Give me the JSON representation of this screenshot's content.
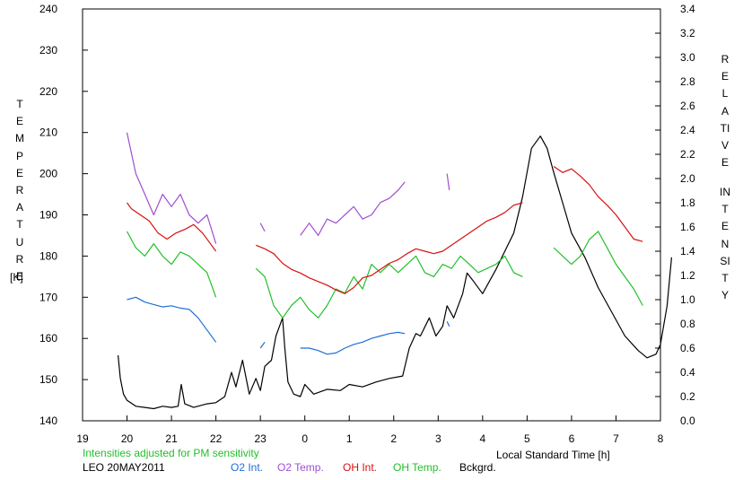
{
  "chart_data": {
    "type": "line",
    "title": "",
    "left_axis_label": "TEMPERATURE",
    "left_axis_unit": "[K]",
    "right_axis_label_1": "RELATIVE",
    "right_axis_label_2": "INTENSITY",
    "xlabel": "Local Standard Time [h]",
    "note": "Intensities adjusted for PM sensitivity",
    "station_label": "LEO 20MAY2011",
    "x_ticks": [
      19,
      20,
      21,
      22,
      23,
      0,
      1,
      2,
      3,
      4,
      5,
      6,
      7,
      8
    ],
    "xlim": [
      19,
      32
    ],
    "ylim_left": [
      140,
      240
    ],
    "y_ticks_left": [
      140,
      150,
      160,
      170,
      180,
      190,
      200,
      210,
      220,
      230,
      240
    ],
    "ylim_right": [
      0.0,
      3.4
    ],
    "y_ticks_right": [
      "0.0",
      "0.2",
      "0.4",
      "0.6",
      "0.8",
      "1.0",
      "1.2",
      "1.4",
      "1.6",
      "1.8",
      "2.0",
      "2.2",
      "2.4",
      "2.6",
      "2.8",
      "3.0",
      "3.2",
      "3.4"
    ],
    "colors": {
      "O2 Int.": "#1e6fd9",
      "O2 Temp.": "#a04ed0",
      "OH Int.": "#d81010",
      "OH Temp.": "#22c02a",
      "Bckgrd.": "#000000"
    },
    "legend": [
      {
        "name": "O2 Int.",
        "color": "#1e6fd9"
      },
      {
        "name": "O2 Temp.",
        "color": "#a04ed0"
      },
      {
        "name": "OH Int.",
        "color": "#d81010"
      },
      {
        "name": "OH Temp.",
        "color": "#22c02a"
      },
      {
        "name": "Bckgrd.",
        "color": "#000000"
      }
    ],
    "series": [
      {
        "name": "Bckgrd.",
        "axis": "right",
        "segments": [
          [
            [
              19.8,
              0.54
            ],
            [
              19.85,
              0.35
            ],
            [
              19.92,
              0.22
            ],
            [
              20.0,
              0.17
            ],
            [
              20.2,
              0.12
            ],
            [
              20.4,
              0.11
            ],
            [
              20.6,
              0.1
            ],
            [
              20.8,
              0.12
            ],
            [
              21.0,
              0.11
            ],
            [
              21.15,
              0.12
            ],
            [
              21.22,
              0.3
            ],
            [
              21.3,
              0.14
            ],
            [
              21.5,
              0.11
            ],
            [
              21.8,
              0.14
            ],
            [
              22.0,
              0.15
            ],
            [
              22.2,
              0.2
            ],
            [
              22.35,
              0.4
            ],
            [
              22.45,
              0.28
            ],
            [
              22.6,
              0.5
            ],
            [
              22.75,
              0.22
            ],
            [
              22.9,
              0.35
            ],
            [
              23.0,
              0.25
            ],
            [
              23.1,
              0.45
            ],
            [
              23.25,
              0.5
            ],
            [
              23.35,
              0.7
            ],
            [
              23.5,
              0.85
            ],
            [
              23.55,
              0.6
            ],
            [
              23.62,
              0.32
            ],
            [
              23.75,
              0.22
            ],
            [
              23.9,
              0.2
            ],
            [
              24.0,
              0.3
            ],
            [
              24.2,
              0.22
            ],
            [
              24.5,
              0.26
            ],
            [
              24.8,
              0.25
            ],
            [
              25.0,
              0.3
            ],
            [
              25.3,
              0.28
            ],
            [
              25.6,
              0.32
            ],
            [
              25.9,
              0.35
            ],
            [
              26.2,
              0.37
            ],
            [
              26.35,
              0.6
            ],
            [
              26.5,
              0.72
            ],
            [
              26.6,
              0.7
            ],
            [
              26.8,
              0.85
            ],
            [
              26.95,
              0.7
            ],
            [
              27.1,
              0.78
            ],
            [
              27.2,
              0.95
            ],
            [
              27.35,
              0.85
            ],
            [
              27.55,
              1.05
            ],
            [
              27.65,
              1.22
            ],
            [
              27.8,
              1.15
            ],
            [
              28.0,
              1.05
            ],
            [
              28.3,
              1.25
            ],
            [
              28.5,
              1.4
            ],
            [
              28.7,
              1.55
            ],
            [
              28.9,
              1.85
            ],
            [
              29.1,
              2.25
            ],
            [
              29.3,
              2.35
            ],
            [
              29.45,
              2.25
            ],
            [
              29.6,
              2.05
            ],
            [
              29.8,
              1.8
            ],
            [
              30.0,
              1.55
            ],
            [
              30.3,
              1.35
            ],
            [
              30.6,
              1.1
            ],
            [
              30.9,
              0.9
            ],
            [
              31.2,
              0.7
            ],
            [
              31.5,
              0.58
            ],
            [
              31.7,
              0.52
            ],
            [
              31.9,
              0.55
            ],
            [
              32.0,
              0.63
            ],
            [
              32.15,
              0.95
            ],
            [
              32.25,
              1.35
            ]
          ]
        ]
      },
      {
        "name": "O2 Int.",
        "axis": "right",
        "segments": [
          [
            [
              20.0,
              1.0
            ],
            [
              20.2,
              1.02
            ],
            [
              20.4,
              0.98
            ],
            [
              20.6,
              0.96
            ],
            [
              20.8,
              0.94
            ],
            [
              21.0,
              0.95
            ],
            [
              21.2,
              0.93
            ],
            [
              21.4,
              0.92
            ],
            [
              21.6,
              0.85
            ],
            [
              21.8,
              0.75
            ],
            [
              22.0,
              0.65
            ]
          ],
          [
            [
              23.0,
              0.6
            ],
            [
              23.1,
              0.65
            ]
          ],
          [
            [
              23.9,
              0.6
            ],
            [
              24.1,
              0.6
            ],
            [
              24.3,
              0.58
            ],
            [
              24.5,
              0.55
            ],
            [
              24.7,
              0.56
            ],
            [
              24.9,
              0.6
            ],
            [
              25.1,
              0.63
            ],
            [
              25.3,
              0.65
            ],
            [
              25.5,
              0.68
            ],
            [
              25.7,
              0.7
            ],
            [
              25.9,
              0.72
            ],
            [
              26.1,
              0.73
            ],
            [
              26.25,
              0.72
            ]
          ],
          [
            [
              27.2,
              0.82
            ],
            [
              27.25,
              0.78
            ]
          ]
        ]
      },
      {
        "name": "O2 Temp.",
        "axis": "left",
        "segments": [
          [
            [
              20.0,
              210
            ],
            [
              20.2,
              200
            ],
            [
              20.4,
              195
            ],
            [
              20.6,
              190
            ],
            [
              20.8,
              195
            ],
            [
              21.0,
              192
            ],
            [
              21.2,
              195
            ],
            [
              21.4,
              190
            ],
            [
              21.6,
              188
            ],
            [
              21.8,
              190
            ],
            [
              22.0,
              183
            ]
          ],
          [
            [
              23.0,
              188
            ],
            [
              23.1,
              186
            ]
          ],
          [
            [
              23.9,
              185
            ],
            [
              24.1,
              188
            ],
            [
              24.3,
              185
            ],
            [
              24.5,
              189
            ],
            [
              24.7,
              188
            ],
            [
              24.9,
              190
            ],
            [
              25.1,
              192
            ],
            [
              25.3,
              189
            ],
            [
              25.5,
              190
            ],
            [
              25.7,
              193
            ],
            [
              25.9,
              194
            ],
            [
              26.1,
              196
            ],
            [
              26.25,
              198
            ]
          ],
          [
            [
              27.2,
              200
            ],
            [
              27.25,
              196
            ]
          ]
        ]
      },
      {
        "name": "OH Int.",
        "axis": "right",
        "segments": [
          [
            [
              20.0,
              1.8
            ],
            [
              20.1,
              1.75
            ],
            [
              20.3,
              1.7
            ],
            [
              20.5,
              1.65
            ],
            [
              20.7,
              1.55
            ],
            [
              20.9,
              1.5
            ],
            [
              21.1,
              1.55
            ],
            [
              21.3,
              1.58
            ],
            [
              21.5,
              1.62
            ],
            [
              21.7,
              1.55
            ],
            [
              21.9,
              1.45
            ],
            [
              22.0,
              1.4
            ]
          ],
          [
            [
              22.9,
              1.45
            ],
            [
              23.1,
              1.42
            ],
            [
              23.3,
              1.38
            ],
            [
              23.5,
              1.3
            ],
            [
              23.7,
              1.25
            ],
            [
              23.9,
              1.22
            ],
            [
              24.1,
              1.18
            ],
            [
              24.3,
              1.15
            ],
            [
              24.5,
              1.12
            ],
            [
              24.7,
              1.08
            ],
            [
              24.9,
              1.05
            ],
            [
              25.1,
              1.1
            ],
            [
              25.3,
              1.18
            ],
            [
              25.5,
              1.2
            ],
            [
              25.7,
              1.25
            ],
            [
              25.9,
              1.3
            ],
            [
              26.1,
              1.33
            ],
            [
              26.3,
              1.38
            ],
            [
              26.5,
              1.42
            ],
            [
              26.7,
              1.4
            ],
            [
              26.9,
              1.38
            ],
            [
              27.1,
              1.4
            ],
            [
              27.3,
              1.45
            ],
            [
              27.5,
              1.5
            ],
            [
              27.7,
              1.55
            ],
            [
              27.9,
              1.6
            ],
            [
              28.1,
              1.65
            ],
            [
              28.3,
              1.68
            ],
            [
              28.5,
              1.72
            ],
            [
              28.7,
              1.78
            ],
            [
              28.9,
              1.8
            ]
          ],
          [
            [
              29.6,
              2.1
            ],
            [
              29.8,
              2.05
            ],
            [
              30.0,
              2.08
            ],
            [
              30.2,
              2.02
            ],
            [
              30.4,
              1.95
            ],
            [
              30.6,
              1.85
            ],
            [
              30.8,
              1.78
            ],
            [
              31.0,
              1.7
            ],
            [
              31.2,
              1.6
            ],
            [
              31.4,
              1.5
            ],
            [
              31.6,
              1.48
            ]
          ]
        ]
      },
      {
        "name": "OH Temp.",
        "axis": "left",
        "segments": [
          [
            [
              20.0,
              186
            ],
            [
              20.2,
              182
            ],
            [
              20.4,
              180
            ],
            [
              20.6,
              183
            ],
            [
              20.8,
              180
            ],
            [
              21.0,
              178
            ],
            [
              21.2,
              181
            ],
            [
              21.4,
              180
            ],
            [
              21.6,
              178
            ],
            [
              21.8,
              176
            ],
            [
              22.0,
              170
            ]
          ],
          [
            [
              22.9,
              177
            ],
            [
              23.1,
              175
            ],
            [
              23.3,
              168
            ],
            [
              23.5,
              165
            ],
            [
              23.7,
              168
            ],
            [
              23.9,
              170
            ],
            [
              24.1,
              167
            ],
            [
              24.3,
              165
            ],
            [
              24.5,
              168
            ],
            [
              24.7,
              172
            ],
            [
              24.9,
              171
            ],
            [
              25.1,
              175
            ],
            [
              25.3,
              172
            ],
            [
              25.5,
              178
            ],
            [
              25.7,
              176
            ],
            [
              25.9,
              178
            ],
            [
              26.1,
              176
            ],
            [
              26.3,
              178
            ],
            [
              26.5,
              180
            ],
            [
              26.7,
              176
            ],
            [
              26.9,
              175
            ],
            [
              27.1,
              178
            ],
            [
              27.3,
              177
            ],
            [
              27.5,
              180
            ],
            [
              27.7,
              178
            ],
            [
              27.9,
              176
            ],
            [
              28.1,
              177
            ],
            [
              28.3,
              178
            ],
            [
              28.5,
              180
            ],
            [
              28.7,
              176
            ],
            [
              28.9,
              175
            ]
          ],
          [
            [
              29.6,
              182
            ],
            [
              29.8,
              180
            ],
            [
              30.0,
              178
            ],
            [
              30.2,
              180
            ],
            [
              30.4,
              184
            ],
            [
              30.6,
              186
            ],
            [
              30.8,
              182
            ],
            [
              31.0,
              178
            ],
            [
              31.2,
              175
            ],
            [
              31.4,
              172
            ],
            [
              31.6,
              168
            ]
          ]
        ]
      }
    ]
  }
}
